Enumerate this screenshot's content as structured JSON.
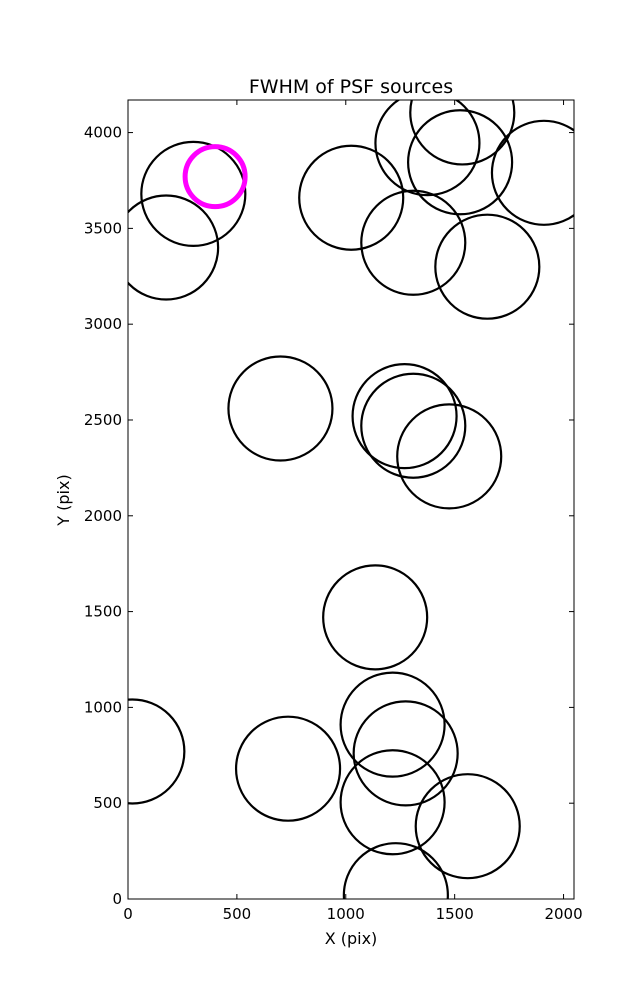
{
  "chart_data": {
    "type": "scatter",
    "title": "FWHM of PSF sources",
    "xlabel": "X (pix)",
    "ylabel": "Y (pix)",
    "xlim": [
      0,
      2048
    ],
    "ylim": [
      0,
      4170
    ],
    "xticks": [
      0,
      500,
      1000,
      1500,
      2000
    ],
    "yticks": [
      0,
      500,
      1000,
      1500,
      2000,
      2500,
      3000,
      3500,
      4000
    ],
    "grid": false,
    "marker": "open circle",
    "series": [
      {
        "color": "#000000",
        "points": [
          {
            "x": 1535,
            "y": 4105
          },
          {
            "x": 1375,
            "y": 3945
          },
          {
            "x": 1525,
            "y": 3845
          },
          {
            "x": 1910,
            "y": 3790
          },
          {
            "x": 300,
            "y": 3680
          },
          {
            "x": 1025,
            "y": 3660
          },
          {
            "x": 175,
            "y": 3400
          },
          {
            "x": 1310,
            "y": 3425
          },
          {
            "x": 1650,
            "y": 3300
          },
          {
            "x": 700,
            "y": 2560
          },
          {
            "x": 1270,
            "y": 2520
          },
          {
            "x": 1310,
            "y": 2470
          },
          {
            "x": 1475,
            "y": 2310
          },
          {
            "x": 1135,
            "y": 1470
          },
          {
            "x": 1215,
            "y": 910
          },
          {
            "x": 20,
            "y": 770
          },
          {
            "x": 1275,
            "y": 760
          },
          {
            "x": 735,
            "y": 680
          },
          {
            "x": 1215,
            "y": 505
          },
          {
            "x": 1560,
            "y": 380
          },
          {
            "x": 1230,
            "y": 20
          }
        ]
      },
      {
        "color": "#ff00ff",
        "points": [
          {
            "x": 400,
            "y": 3770
          }
        ]
      }
    ]
  }
}
